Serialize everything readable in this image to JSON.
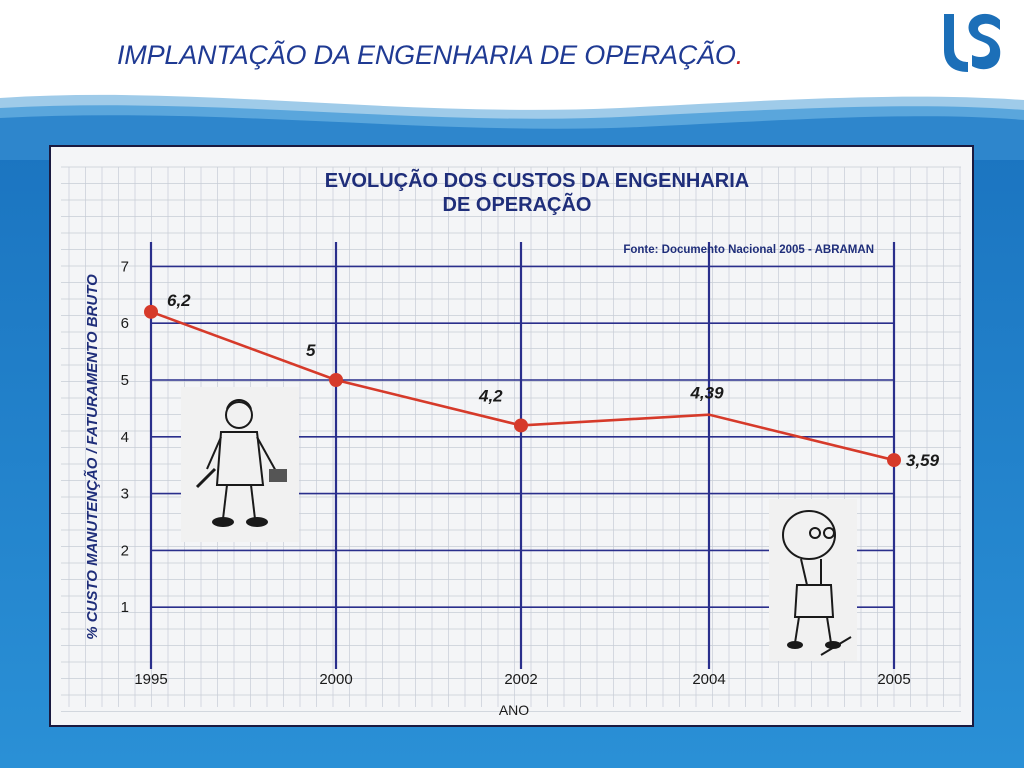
{
  "slide": {
    "title": "IMPLANTAÇÃO DA ENGENHARIA DE OPERAÇÃO",
    "title_dot": ".",
    "colors": {
      "title": "#1f3a93",
      "title_dot": "#d11e1e",
      "background_top": "#ffffff",
      "background_bottom": "#1a7fc4",
      "logo": "#1c6fb8"
    },
    "icons": [
      "sabesp-logo-icon",
      "wave-decoration",
      "worker-cartoon-icon",
      "engineer-cartoon-icon"
    ]
  },
  "chart_data": {
    "type": "line",
    "title": "EVOLUÇÃO DOS CUSTOS DA ENGENHARIA DE OPERAÇÃO",
    "title_lines": [
      "EVOLUÇÃO DOS CUSTOS DA ENGENHARIA",
      "DE OPERAÇÃO"
    ],
    "source": "Fonte: Documento Nacional 2005 - ABRAMAN",
    "xlabel": "ANO",
    "ylabel": "% CUSTO MANUTENÇÃO / FATURAMENTO BRUTO",
    "categories": [
      "1995",
      "2000",
      "2002",
      "2004",
      "2005"
    ],
    "series": [
      {
        "values": [
          6.2,
          5,
          4.2,
          4.39,
          3.59
        ],
        "labels": [
          "6,2",
          "5",
          "4,2",
          "4,39",
          "3,59"
        ],
        "color": "#d63a2a",
        "markers": [
          true,
          true,
          true,
          false,
          true
        ]
      }
    ],
    "ylim": [
      0,
      7.4
    ],
    "yticks": [
      1,
      2,
      3,
      4,
      5,
      6,
      7
    ],
    "grid": true,
    "colors": {
      "title": "#1f2e7a",
      "axis_lines": "#2a2f8c",
      "grid": "#c7ccd6",
      "line": "#d63a2a",
      "text": "#1a1a1a"
    }
  }
}
